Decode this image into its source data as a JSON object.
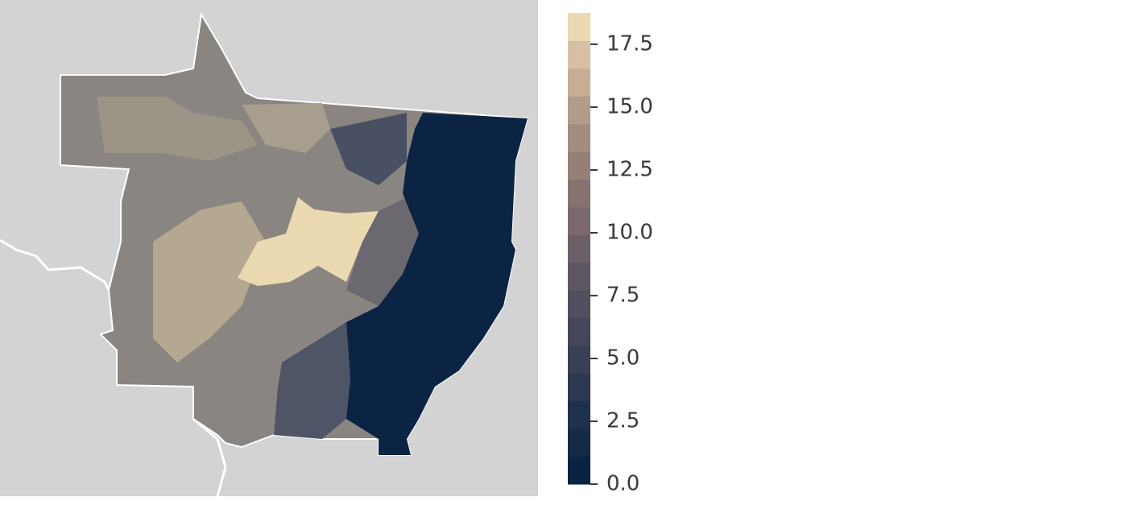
{
  "colorbar": {
    "lim": [
      0,
      18.75
    ],
    "ticks": [
      {
        "value": 0,
        "label": "0.0"
      },
      2.5,
      {
        "value": 5,
        "label": "5.0"
      },
      7.5,
      {
        "value": 10,
        "label": "10.0"
      },
      12.5,
      {
        "value": 15,
        "label": "15.0"
      },
      17.5
    ],
    "colors": [
      "#0a2343",
      "#152a47",
      "#1f314c",
      "#2c3850",
      "#393f55",
      "#454759",
      "#524f5e",
      "#5e5762",
      "#6b6067",
      "#79696c",
      "#867371",
      "#958078",
      "#a48d80",
      "#b39b89",
      "#c5ad96",
      "#d6bfa3",
      "#ecd9b1"
    ]
  }
}
